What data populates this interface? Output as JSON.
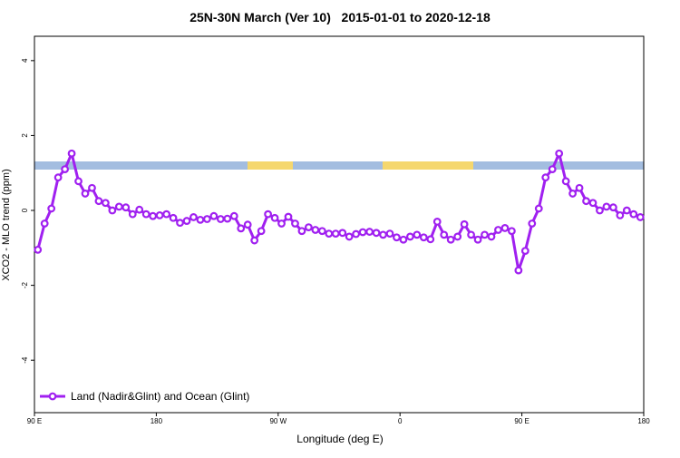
{
  "chart_data": {
    "type": "line",
    "title": "25N-30N March (Ver 10)   2015-01-01 to 2020-12-18",
    "x_label": "Longitude (deg E)",
    "y_label": "XCO2 - MLO trend (ppm)",
    "xlim": [
      90,
      540
    ],
    "ylim": [
      -5.4,
      4.65
    ],
    "xticks": [
      {
        "value": 90,
        "label": "90 E"
      },
      {
        "value": 180,
        "label": "180"
      },
      {
        "value": 270,
        "label": "90 W"
      },
      {
        "value": 360,
        "label": "0"
      },
      {
        "value": 450,
        "label": "90 E"
      },
      {
        "value": 540,
        "label": "180"
      }
    ],
    "yticks": [
      -4,
      -2,
      0,
      2,
      4
    ],
    "legend": "bottom-left",
    "x": [
      92.5,
      97.5,
      102.5,
      107.5,
      112.5,
      117.5,
      122.5,
      127.5,
      132.5,
      137.5,
      142.5,
      147.5,
      152.5,
      157.5,
      162.5,
      167.5,
      172.5,
      177.5,
      182.5,
      187.5,
      192.5,
      197.5,
      202.5,
      207.5,
      212.5,
      217.5,
      222.5,
      227.5,
      232.5,
      237.5,
      242.5,
      247.5,
      252.5,
      257.5,
      262.5,
      267.5,
      272.5,
      277.5,
      282.5,
      287.5,
      292.5,
      297.5,
      302.5,
      307.5,
      312.5,
      317.5,
      322.5,
      327.5,
      332.5,
      337.5,
      342.5,
      347.5,
      352.5,
      357.5,
      362.5,
      367.5,
      372.5,
      377.5,
      382.5,
      387.5,
      392.5,
      397.5,
      402.5,
      407.5,
      412.5,
      417.5,
      422.5,
      427.5,
      432.5,
      437.5,
      442.5,
      447.5,
      452.5,
      457.5,
      462.5,
      467.5,
      472.5,
      477.5,
      482.5,
      487.5,
      492.5,
      497.5,
      502.5,
      507.5,
      512.5,
      517.5,
      522.5,
      527.5,
      532.5,
      537.5
    ],
    "series": [
      {
        "name": "Land (Nadir&Glint) and Ocean (Glint)",
        "color": "#a020f0",
        "values": [
          -1.05,
          -0.35,
          0.05,
          0.88,
          1.1,
          1.52,
          0.78,
          0.45,
          0.6,
          0.25,
          0.2,
          0.0,
          0.1,
          0.08,
          -0.1,
          0.02,
          -0.1,
          -0.15,
          -0.13,
          -0.1,
          -0.2,
          -0.33,
          -0.28,
          -0.18,
          -0.25,
          -0.23,
          -0.15,
          -0.23,
          -0.22,
          -0.15,
          -0.48,
          -0.38,
          -0.8,
          -0.55,
          -0.1,
          -0.2,
          -0.35,
          -0.17,
          -0.35,
          -0.55,
          -0.45,
          -0.52,
          -0.55,
          -0.62,
          -0.62,
          -0.6,
          -0.7,
          -0.63,
          -0.58,
          -0.57,
          -0.6,
          -0.65,
          -0.62,
          -0.72,
          -0.78,
          -0.7,
          -0.65,
          -0.72,
          -0.77,
          -0.3,
          -0.65,
          -0.78,
          -0.7,
          -0.37,
          -0.65,
          -0.78,
          -0.65,
          -0.7,
          -0.52,
          -0.47,
          -0.55,
          -1.6,
          -1.08,
          -0.35,
          0.05,
          0.88,
          1.1,
          1.52,
          0.78,
          0.45,
          0.6,
          0.25,
          0.2,
          0.0,
          0.1,
          0.08,
          -0.13,
          0.0,
          -0.1,
          -0.18
        ]
      }
    ]
  }
}
